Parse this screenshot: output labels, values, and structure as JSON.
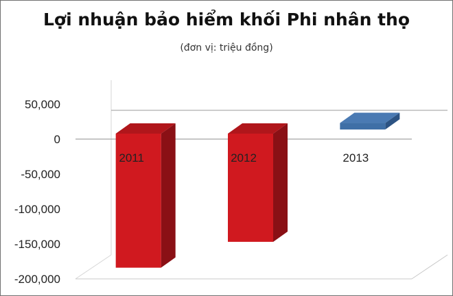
{
  "chart_data": {
    "type": "bar",
    "title": "Lợi nhuận bảo hiểm khối Phi nhân thọ",
    "subtitle": "(đơn vị: triệu đồng)",
    "categories": [
      "2011",
      "2012",
      "2013"
    ],
    "values": [
      -184000,
      -147000,
      23000
    ],
    "ylim": [
      -200000,
      50000
    ],
    "yticks": [
      50000,
      0,
      -50000,
      -100000,
      -150000,
      -200000
    ],
    "ytick_labels": [
      "50,000",
      "0",
      "-50,000",
      "-100,000",
      "-150,000",
      "-200,000"
    ],
    "grid": true,
    "legend": "none",
    "colors": {
      "negative_front": "#d0191f",
      "negative_top": "#b0161b",
      "negative_side": "#8a1015",
      "positive_front": "#3f6fa6",
      "positive_top": "#4a7ab3",
      "positive_side": "#2c5383"
    }
  }
}
